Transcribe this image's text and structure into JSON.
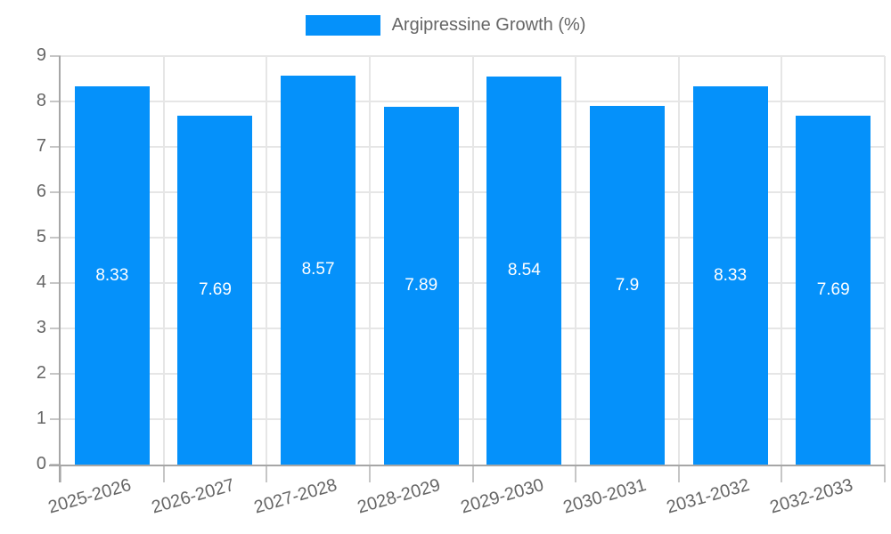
{
  "chart_data": {
    "type": "bar",
    "title": "",
    "legend": [
      "Argipressine Growth (%)"
    ],
    "legend_position": "top",
    "categories": [
      "2025-2026",
      "2026-2027",
      "2027-2028",
      "2028-2029",
      "2029-2030",
      "2030-2031",
      "2031-2032",
      "2032-2033"
    ],
    "series": [
      {
        "name": "Argipressine Growth (%)",
        "values": [
          8.33,
          7.69,
          8.57,
          7.89,
          8.54,
          7.9,
          8.33,
          7.69
        ]
      }
    ],
    "value_labels": [
      "8.33",
      "7.69",
      "8.57",
      "7.89",
      "8.54",
      "7.9",
      "8.33",
      "7.69"
    ],
    "xlabel": "",
    "ylabel": "",
    "ylim": [
      0,
      9
    ],
    "ytick_step": 1,
    "ytick_labels": [
      "0",
      "1",
      "2",
      "3",
      "4",
      "5",
      "6",
      "7",
      "8",
      "9"
    ],
    "grid": true,
    "colors": {
      "bar": "#0591fa",
      "bar_label": "#ffffff",
      "grid": "#e6e6e6",
      "axis": "#a6a6a6",
      "tick": "#c6c6c6",
      "text": "#666666"
    }
  }
}
